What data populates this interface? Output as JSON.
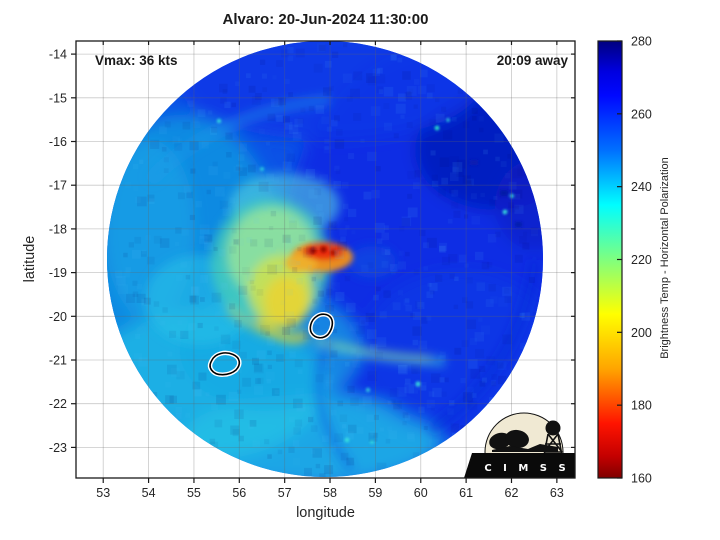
{
  "page": {
    "background": "#ffffff"
  },
  "chart_data": {
    "type": "heatmap",
    "title": "Alvaro: 20-Jun-2024 11:30:00",
    "xlabel": "longitude",
    "ylabel": "latitude",
    "xlim": [
      52.4,
      63.4
    ],
    "ylim": [
      -23.7,
      -13.7
    ],
    "xticks": [
      53,
      54,
      55,
      56,
      57,
      58,
      59,
      60,
      61,
      62,
      63
    ],
    "yticks": [
      -14,
      -15,
      -16,
      -17,
      -18,
      -19,
      -20,
      -21,
      -22,
      -23
    ],
    "grid": true,
    "annotations": [
      {
        "id": "vmax",
        "text": "Vmax: 36 kts",
        "position": "top-left"
      },
      {
        "id": "time-offset",
        "text": "20:09 away",
        "position": "top-right"
      }
    ],
    "colorbar": {
      "label": "Brightness Temp - Horizontal Polarization",
      "ticks": [
        280,
        260,
        240,
        220,
        200,
        180,
        160
      ],
      "range": [
        160,
        280
      ],
      "colormap": "jet-flipped",
      "key_colors": {
        "280": "#00007f",
        "240": "#00d0ff",
        "200": "#ffff00",
        "160": "#7f0000"
      }
    },
    "features": {
      "swath_shape": "circular microwave satellite swath",
      "convective_core_approx": {
        "lon": 57.8,
        "lat": -18.8,
        "min_brightness_temp_approx": 165
      },
      "island_contours_approx": [
        {
          "lon": 57.6,
          "lat": -20.3
        },
        {
          "lon": 55.5,
          "lat": -21.1
        }
      ]
    },
    "logo_text": "C I M S S"
  }
}
